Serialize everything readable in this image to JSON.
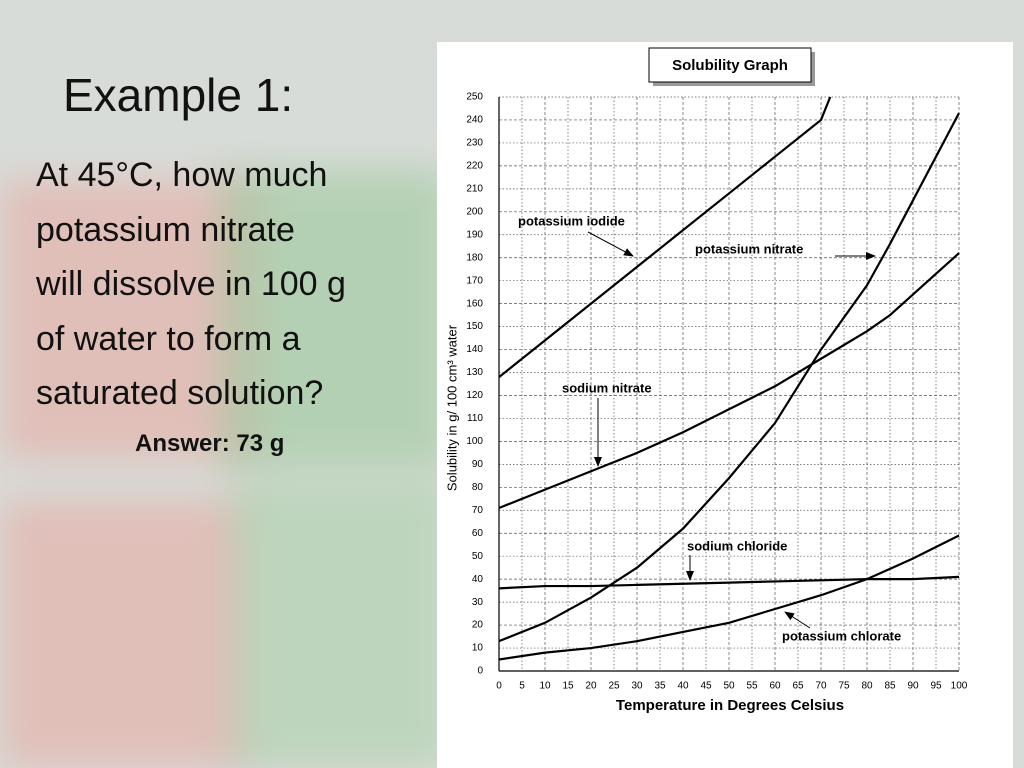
{
  "slide": {
    "title": "Example 1:",
    "body": [
      "At 45°C, how much",
      "potassium nitrate",
      "will dissolve in 100 g",
      "of water to form a",
      "saturated solution?"
    ],
    "answer": "Answer: 73 g"
  },
  "chart_data": {
    "type": "line",
    "title": "Solubility Graph",
    "x_label": "Temperature in Degrees Celsius",
    "y_label": "Solubility in g/ 100 cm³ water",
    "xlim": [
      0,
      100
    ],
    "xticks": [
      0,
      5,
      10,
      15,
      20,
      25,
      30,
      35,
      40,
      45,
      50,
      55,
      60,
      65,
      70,
      75,
      80,
      85,
      90,
      95,
      100
    ],
    "ylim": [
      0,
      250
    ],
    "yticks": [
      0,
      10,
      20,
      30,
      40,
      50,
      60,
      70,
      80,
      90,
      100,
      110,
      120,
      130,
      140,
      150,
      160,
      170,
      180,
      190,
      200,
      210,
      220,
      230,
      240,
      250
    ],
    "grid": true,
    "series": [
      {
        "name": "potassium iodide",
        "color": "#000000",
        "x": [
          0,
          10,
          20,
          30,
          40,
          50,
          60,
          70,
          72
        ],
        "values": [
          128,
          144,
          160,
          176,
          192,
          208,
          224,
          240,
          250
        ]
      },
      {
        "name": "potassium nitrate",
        "color": "#000000",
        "x": [
          0,
          10,
          20,
          30,
          40,
          50,
          60,
          70,
          80,
          85,
          90,
          100
        ],
        "values": [
          13,
          21,
          32,
          45,
          62,
          84,
          108,
          140,
          168,
          186,
          205,
          243
        ]
      },
      {
        "name": "sodium nitrate",
        "color": "#000000",
        "x": [
          0,
          10,
          20,
          30,
          40,
          50,
          60,
          70,
          80,
          85,
          90,
          100
        ],
        "values": [
          71,
          79,
          87,
          95,
          104,
          114,
          124,
          136,
          148,
          155,
          164,
          182
        ]
      },
      {
        "name": "sodium chloride",
        "color": "#000000",
        "x": [
          0,
          10,
          20,
          30,
          40,
          50,
          60,
          70,
          80,
          90,
          100
        ],
        "values": [
          36,
          37,
          37,
          37.5,
          38,
          38.5,
          39,
          39.5,
          40,
          40,
          41
        ]
      },
      {
        "name": "potassium chlorate",
        "color": "#000000",
        "x": [
          0,
          10,
          20,
          30,
          40,
          50,
          60,
          70,
          80,
          90,
          100
        ],
        "values": [
          5,
          8,
          10,
          13,
          17,
          21,
          27,
          33,
          40,
          49,
          59
        ]
      }
    ]
  }
}
